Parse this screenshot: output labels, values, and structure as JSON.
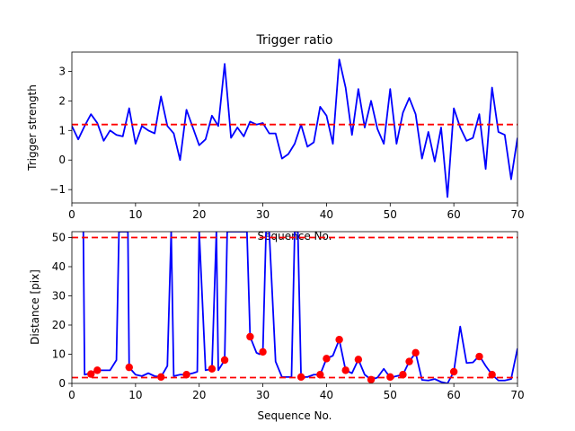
{
  "chart_data": [
    {
      "type": "line",
      "title": "Trigger ratio",
      "xlabel": "Sequence No.",
      "ylabel": "Trigger strength",
      "xlim": [
        0,
        70
      ],
      "ylim": [
        -1.45,
        3.65
      ],
      "xticks": [
        0,
        10,
        20,
        30,
        40,
        50,
        60,
        70
      ],
      "yticks": [
        -1,
        0,
        1,
        2,
        3
      ],
      "grid": false,
      "series": [
        {
          "color": "#0000ff",
          "x": [
            0,
            1,
            2,
            3,
            4,
            5,
            6,
            7,
            8,
            9,
            10,
            11,
            12,
            13,
            14,
            15,
            16,
            17,
            18,
            19,
            20,
            21,
            22,
            23,
            24,
            25,
            26,
            27,
            28,
            29,
            30,
            31,
            32,
            33,
            34,
            35,
            36,
            37,
            38,
            39,
            40,
            41,
            42,
            43,
            44,
            45,
            46,
            47,
            48,
            49,
            50,
            51,
            52,
            53,
            54,
            55,
            56,
            57,
            58,
            59,
            60,
            61,
            62,
            63,
            64,
            65,
            66,
            67,
            68,
            69,
            70
          ],
          "y": [
            1.15,
            0.7,
            1.15,
            1.55,
            1.25,
            0.65,
            1.0,
            0.85,
            0.8,
            1.75,
            0.55,
            1.15,
            1.0,
            0.9,
            2.15,
            1.15,
            0.9,
            0.0,
            1.7,
            1.1,
            0.5,
            0.7,
            1.5,
            1.15,
            3.25,
            0.75,
            1.1,
            0.8,
            1.3,
            1.2,
            1.25,
            0.9,
            0.9,
            0.05,
            0.2,
            0.55,
            1.2,
            0.45,
            0.6,
            1.8,
            1.5,
            0.55,
            3.4,
            2.45,
            0.85,
            2.4,
            1.1,
            2.0,
            1.05,
            0.55,
            2.4,
            0.55,
            1.6,
            2.1,
            1.55,
            0.05,
            0.95,
            -0.05,
            1.1,
            -1.25,
            1.75,
            1.1,
            0.65,
            0.75,
            1.55,
            -0.3,
            2.45,
            0.95,
            0.85,
            -0.65,
            0.75
          ]
        }
      ],
      "hlines": [
        {
          "y": 1.2,
          "color": "#ff0000",
          "style": "dashed"
        }
      ]
    },
    {
      "type": "line",
      "title": "",
      "xlabel": "Sequence No.",
      "ylabel": "Distance [pix]",
      "xlim": [
        0,
        70
      ],
      "ylim": [
        0,
        52
      ],
      "xticks": [
        0,
        10,
        20,
        30,
        40,
        50,
        60,
        70
      ],
      "yticks": [
        0,
        10,
        20,
        30,
        40,
        50
      ],
      "grid": false,
      "series": [
        {
          "color": "#0000ff",
          "x": [
            1.8,
            2,
            3,
            4,
            5,
            6,
            7,
            7.4,
            8,
            8.8,
            9,
            10,
            11,
            12,
            13,
            14,
            15,
            15.6,
            16,
            17,
            18,
            19,
            19.7,
            20,
            21,
            22,
            22.7,
            23,
            24,
            24.4,
            27.5,
            28,
            29,
            29.5,
            30,
            30.5,
            31,
            32,
            33,
            34,
            34.5,
            35,
            35.5,
            36,
            37,
            38,
            39,
            40,
            41,
            42,
            43,
            44,
            45,
            46,
            47,
            48,
            49,
            50,
            51,
            52,
            53,
            54,
            55,
            56,
            57,
            58,
            59,
            60,
            61,
            62,
            63,
            64,
            65,
            66,
            67,
            68,
            69,
            70
          ],
          "y": [
            52,
            3,
            3.5,
            4.5,
            4.5,
            4.5,
            8,
            52,
            52,
            52,
            5.5,
            3,
            2.5,
            3.5,
            2.5,
            2.2,
            6,
            52,
            2.5,
            3,
            3,
            3.5,
            4,
            52,
            4.5,
            5,
            52,
            4.5,
            8,
            52,
            52,
            16,
            10.5,
            10,
            10.8,
            52,
            52,
            7.5,
            2.2,
            2.2,
            2.2,
            52,
            52,
            2.2,
            2.2,
            3,
            3,
            8.5,
            9.5,
            15,
            4.5,
            3.5,
            8.2,
            3,
            1.3,
            2,
            5,
            2,
            2.5,
            3,
            7.5,
            10.5,
            1.2,
            1,
            1.5,
            0.5,
            0,
            4,
            19.5,
            7,
            7.2,
            9.5,
            6,
            3,
            1,
            1,
            1.5,
            12
          ]
        },
        {
          "type": "scatter",
          "color": "#ff0000",
          "x": [
            3,
            4,
            9,
            14,
            18,
            22,
            24,
            28,
            30,
            36,
            39,
            40,
            42,
            43,
            45,
            47,
            50,
            52,
            53,
            54,
            60,
            64,
            66
          ],
          "y": [
            3.2,
            4.5,
            5.5,
            2.2,
            3,
            5,
            8,
            16,
            10.8,
            2.2,
            3,
            8.5,
            15,
            4.5,
            8.2,
            1.3,
            2.2,
            3,
            7.5,
            10.5,
            4,
            9.2,
            3
          ]
        }
      ],
      "hlines": [
        {
          "y": 50,
          "color": "#ff0000",
          "style": "dashed"
        },
        {
          "y": 2,
          "color": "#ff0000",
          "style": "dashed"
        }
      ]
    }
  ]
}
